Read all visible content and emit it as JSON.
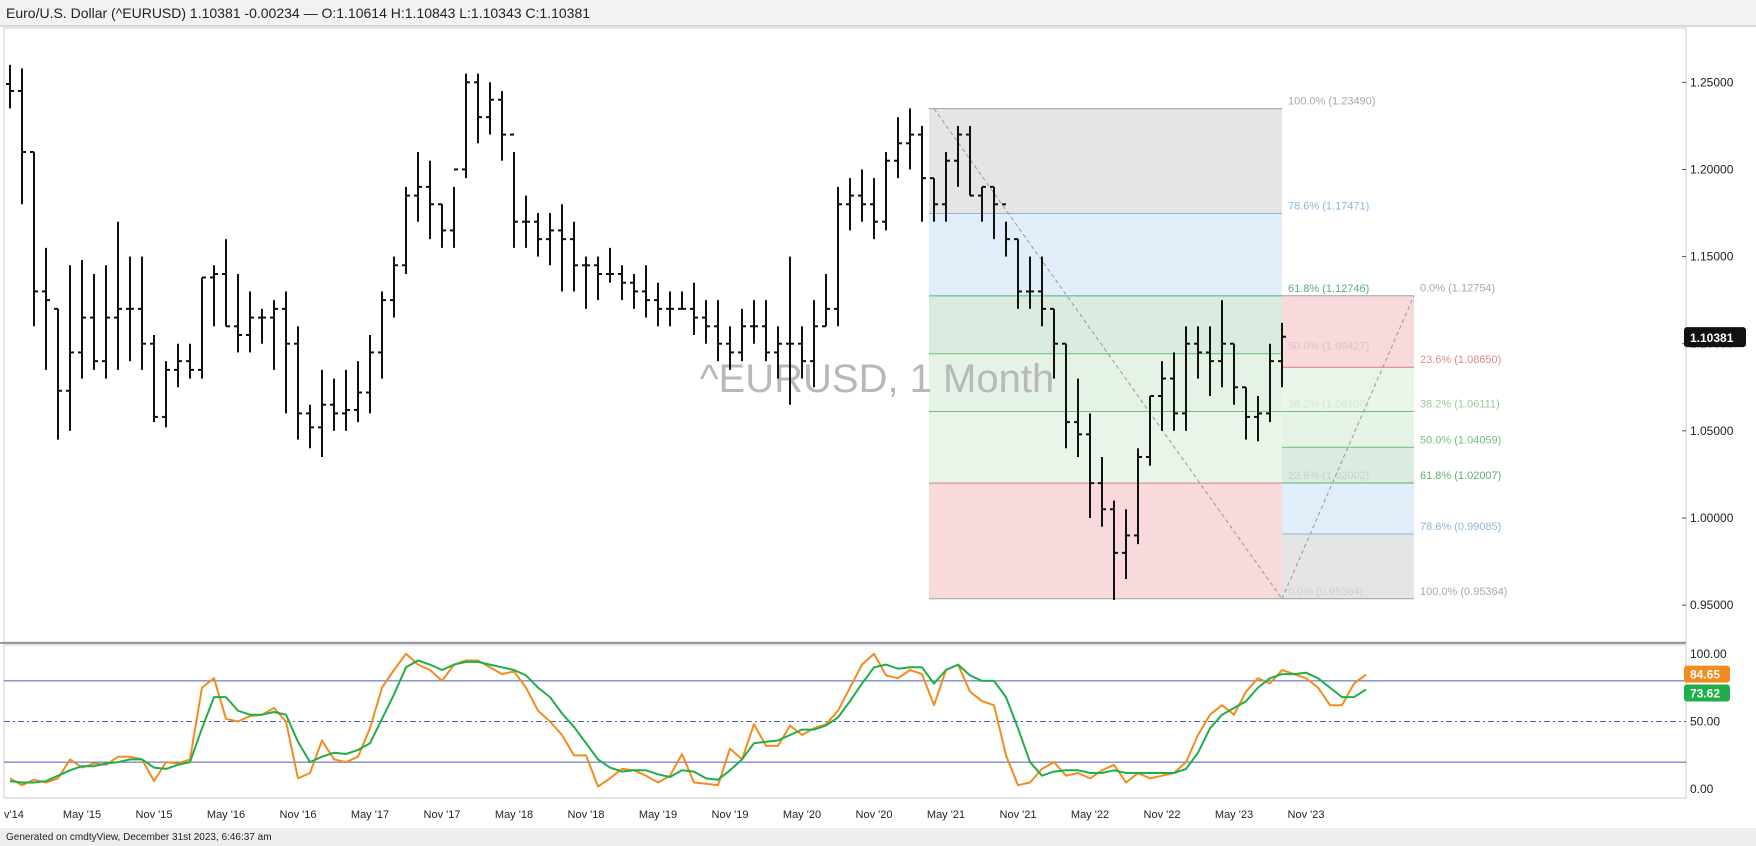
{
  "header": {
    "title": "Euro/U.S. Dollar (^EURUSD) 1.10381 -0.00234 — O:1.10614 H:1.10843 L:1.10343 C:1.10381"
  },
  "watermark": "^EURUSD, 1 Month",
  "footer": "Generated on cmdtyView, December 31st 2023, 6:46:37 am",
  "colors": {
    "bars": "#111111",
    "stoch_k": "#f28c1e",
    "stoch_d": "#1fae4a",
    "ref_line": "#4b5fb5",
    "last_price_badge": "#111111",
    "k_badge": "#f28c1e",
    "d_badge": "#1fae4a"
  },
  "chart_data": [
    {
      "type": "ohlc",
      "title": "^EURUSD, 1 Month",
      "interval": "1 Month",
      "y_axis_side": "right",
      "ylim": [
        0.93,
        1.28
      ],
      "yticks": [
        "1.25000",
        "1.20000",
        "1.15000",
        "1.10000",
        "1.05000",
        "1.00000",
        "0.95000"
      ],
      "xticks": [
        "v'14",
        "May '15",
        "Nov '15",
        "May '16",
        "Nov '16",
        "May '17",
        "Nov '17",
        "May '18",
        "Nov '18",
        "May '19",
        "Nov '19",
        "May '20",
        "Nov '20",
        "May '21",
        "Nov '21",
        "May '22",
        "Nov '22",
        "May '23",
        "Nov '23"
      ],
      "last_price": "1.10381",
      "start": "Nov 2014",
      "bars": [
        [
          1.249,
          1.26,
          1.235,
          1.245
        ],
        [
          1.245,
          1.258,
          1.18,
          1.21
        ],
        [
          1.21,
          1.21,
          1.11,
          1.13
        ],
        [
          1.13,
          1.155,
          1.085,
          1.125
        ],
        [
          1.12,
          1.12,
          1.045,
          1.073
        ],
        [
          1.073,
          1.145,
          1.05,
          1.095
        ],
        [
          1.095,
          1.148,
          1.08,
          1.115
        ],
        [
          1.115,
          1.14,
          1.085,
          1.09
        ],
        [
          1.09,
          1.145,
          1.08,
          1.115
        ],
        [
          1.115,
          1.17,
          1.085,
          1.12
        ],
        [
          1.12,
          1.15,
          1.09,
          1.12
        ],
        [
          1.12,
          1.15,
          1.085,
          1.1
        ],
        [
          1.1,
          1.105,
          1.055,
          1.058
        ],
        [
          1.058,
          1.09,
          1.052,
          1.085
        ],
        [
          1.085,
          1.1,
          1.075,
          1.09
        ],
        [
          1.09,
          1.1,
          1.08,
          1.085
        ],
        [
          1.085,
          1.138,
          1.08,
          1.138
        ],
        [
          1.138,
          1.145,
          1.11,
          1.14
        ],
        [
          1.14,
          1.16,
          1.11,
          1.11
        ],
        [
          1.11,
          1.14,
          1.095,
          1.105
        ],
        [
          1.105,
          1.13,
          1.095,
          1.115
        ],
        [
          1.115,
          1.12,
          1.1,
          1.115
        ],
        [
          1.115,
          1.125,
          1.085,
          1.12
        ],
        [
          1.12,
          1.13,
          1.06,
          1.1
        ],
        [
          1.1,
          1.11,
          1.045,
          1.06
        ],
        [
          1.06,
          1.065,
          1.04,
          1.052
        ],
        [
          1.052,
          1.085,
          1.035,
          1.065
        ],
        [
          1.065,
          1.08,
          1.05,
          1.06
        ],
        [
          1.06,
          1.085,
          1.05,
          1.062
        ],
        [
          1.062,
          1.09,
          1.055,
          1.072
        ],
        [
          1.072,
          1.105,
          1.06,
          1.095
        ],
        [
          1.095,
          1.13,
          1.08,
          1.125
        ],
        [
          1.125,
          1.15,
          1.115,
          1.145
        ],
        [
          1.145,
          1.19,
          1.14,
          1.185
        ],
        [
          1.185,
          1.21,
          1.17,
          1.19
        ],
        [
          1.19,
          1.205,
          1.16,
          1.18
        ],
        [
          1.18,
          1.18,
          1.155,
          1.165
        ],
        [
          1.165,
          1.19,
          1.155,
          1.2
        ],
        [
          1.2,
          1.255,
          1.195,
          1.25
        ],
        [
          1.25,
          1.255,
          1.215,
          1.23
        ],
        [
          1.23,
          1.25,
          1.22,
          1.24
        ],
        [
          1.24,
          1.245,
          1.205,
          1.22
        ],
        [
          1.22,
          1.21,
          1.155,
          1.17
        ],
        [
          1.17,
          1.185,
          1.155,
          1.17
        ],
        [
          1.17,
          1.175,
          1.15,
          1.16
        ],
        [
          1.16,
          1.175,
          1.145,
          1.165
        ],
        [
          1.165,
          1.18,
          1.13,
          1.16
        ],
        [
          1.16,
          1.17,
          1.13,
          1.145
        ],
        [
          1.145,
          1.15,
          1.12,
          1.145
        ],
        [
          1.145,
          1.15,
          1.125,
          1.14
        ],
        [
          1.14,
          1.155,
          1.135,
          1.14
        ],
        [
          1.14,
          1.145,
          1.125,
          1.135
        ],
        [
          1.135,
          1.14,
          1.12,
          1.13
        ],
        [
          1.13,
          1.145,
          1.115,
          1.125
        ],
        [
          1.125,
          1.135,
          1.11,
          1.12
        ],
        [
          1.12,
          1.13,
          1.11,
          1.12
        ],
        [
          1.12,
          1.13,
          1.12,
          1.12
        ],
        [
          1.12,
          1.135,
          1.105,
          1.115
        ],
        [
          1.115,
          1.125,
          1.1,
          1.11
        ],
        [
          1.11,
          1.125,
          1.09,
          1.1
        ],
        [
          1.1,
          1.11,
          1.085,
          1.095
        ],
        [
          1.095,
          1.12,
          1.09,
          1.11
        ],
        [
          1.11,
          1.125,
          1.1,
          1.11
        ],
        [
          1.11,
          1.125,
          1.09,
          1.095
        ],
        [
          1.095,
          1.11,
          1.08,
          1.1
        ],
        [
          1.1,
          1.15,
          1.065,
          1.1
        ],
        [
          1.1,
          1.11,
          1.08,
          1.09
        ],
        [
          1.09,
          1.125,
          1.075,
          1.11
        ],
        [
          1.11,
          1.14,
          1.11,
          1.12
        ],
        [
          1.12,
          1.19,
          1.11,
          1.18
        ],
        [
          1.18,
          1.195,
          1.165,
          1.185
        ],
        [
          1.185,
          1.2,
          1.17,
          1.18
        ],
        [
          1.18,
          1.195,
          1.16,
          1.17
        ],
        [
          1.17,
          1.21,
          1.165,
          1.205
        ],
        [
          1.205,
          1.23,
          1.195,
          1.215
        ],
        [
          1.215,
          1.235,
          1.2,
          1.22
        ],
        [
          1.22,
          1.225,
          1.17,
          1.195
        ],
        [
          1.195,
          1.195,
          1.17,
          1.18
        ],
        [
          1.18,
          1.21,
          1.17,
          1.205
        ],
        [
          1.205,
          1.225,
          1.19,
          1.22
        ],
        [
          1.22,
          1.225,
          1.185,
          1.185
        ],
        [
          1.185,
          1.19,
          1.17,
          1.19
        ],
        [
          1.19,
          1.19,
          1.16,
          1.18
        ],
        [
          1.18,
          1.17,
          1.15,
          1.16
        ],
        [
          1.16,
          1.16,
          1.12,
          1.13
        ],
        [
          1.13,
          1.15,
          1.12,
          1.13
        ],
        [
          1.13,
          1.15,
          1.11,
          1.12
        ],
        [
          1.12,
          1.12,
          1.08,
          1.1
        ],
        [
          1.1,
          1.1,
          1.04,
          1.055
        ],
        [
          1.055,
          1.08,
          1.035,
          1.048
        ],
        [
          1.048,
          1.06,
          1.0,
          1.02
        ],
        [
          1.02,
          1.035,
          0.995,
          1.005
        ],
        [
          1.005,
          1.01,
          0.953,
          0.98
        ],
        [
          0.98,
          1.005,
          0.965,
          0.99
        ],
        [
          0.99,
          1.04,
          0.985,
          1.035
        ],
        [
          1.035,
          1.07,
          1.03,
          1.07
        ],
        [
          1.07,
          1.09,
          1.05,
          1.08
        ],
        [
          1.08,
          1.095,
          1.05,
          1.06
        ],
        [
          1.06,
          1.11,
          1.05,
          1.1
        ],
        [
          1.1,
          1.11,
          1.08,
          1.095
        ],
        [
          1.095,
          1.11,
          1.07,
          1.09
        ],
        [
          1.09,
          1.125,
          1.075,
          1.1
        ],
        [
          1.1,
          1.1,
          1.065,
          1.075
        ],
        [
          1.075,
          1.075,
          1.045,
          1.058
        ],
        [
          1.058,
          1.07,
          1.044,
          1.06
        ],
        [
          1.06,
          1.1,
          1.055,
          1.09
        ],
        [
          1.09,
          1.112,
          1.075,
          1.104
        ]
      ],
      "fibonacci": {
        "retracement_high": [
          {
            "label": "100.0% (1.23490)",
            "value": 1.2349
          },
          {
            "label": "78.6% (1.17471)",
            "value": 1.17471
          },
          {
            "label": "61.8% (1.12746)",
            "value": 1.12746
          },
          {
            "label": "50.0% (1.09427)",
            "value": 1.09427
          },
          {
            "label": "38.2% (1.06108)",
            "value": 1.06108
          },
          {
            "label": "23.6% (1.02002)",
            "value": 1.02002
          },
          {
            "label": "0.0% (0.95364)",
            "value": 0.95364
          }
        ],
        "retracement_low": [
          {
            "label": "0.0% (1.12754)",
            "value": 1.12754
          },
          {
            "label": "23.6% (1.08650)",
            "value": 1.0865
          },
          {
            "label": "38.2% (1.06111)",
            "value": 1.06111
          },
          {
            "label": "50.0% (1.04059)",
            "value": 1.04059
          },
          {
            "label": "61.8% (1.02007)",
            "value": 1.02007
          },
          {
            "label": "78.6% (0.99085)",
            "value": 0.99085
          },
          {
            "label": "100.0% (0.95364)",
            "value": 0.95364
          }
        ]
      }
    },
    {
      "type": "line",
      "ylim": [
        -5,
        105
      ],
      "yticks": [
        "100.00",
        "50.00",
        "0.00"
      ],
      "reference_lines": [
        80,
        50,
        20
      ],
      "series": [
        {
          "values": [
            8,
            3,
            7,
            5,
            8,
            22,
            16,
            19,
            18,
            24,
            24,
            22,
            6,
            20,
            19,
            22,
            75,
            82,
            52,
            50,
            54,
            55,
            60,
            50,
            8,
            12,
            36,
            22,
            20,
            24,
            45,
            75,
            88,
            100,
            92,
            88,
            80,
            92,
            95,
            95,
            90,
            85,
            87,
            75,
            58,
            50,
            40,
            25,
            25,
            2,
            8,
            15,
            14,
            10,
            5,
            10,
            26,
            5,
            4,
            3,
            30,
            22,
            48,
            32,
            32,
            47,
            40,
            45,
            48,
            58,
            75,
            92,
            100,
            84,
            82,
            88,
            85,
            62,
            88,
            92,
            72,
            65,
            62,
            25,
            3,
            5,
            15,
            20,
            10,
            12,
            8,
            14,
            18,
            5,
            12,
            8,
            10,
            12,
            20,
            40,
            55,
            62,
            55,
            72,
            82,
            78,
            88,
            85,
            82,
            75,
            62,
            62,
            78,
            84.65
          ]
        },
        {
          "values": [
            6,
            5,
            5,
            6,
            10,
            14,
            17,
            17,
            19,
            20,
            22,
            22,
            16,
            15,
            18,
            20,
            45,
            68,
            68,
            58,
            55,
            55,
            57,
            55,
            35,
            20,
            24,
            27,
            26,
            29,
            34,
            52,
            70,
            90,
            95,
            92,
            88,
            92,
            94,
            94,
            92,
            90,
            88,
            84,
            75,
            68,
            56,
            46,
            34,
            22,
            16,
            13,
            14,
            14,
            11,
            9,
            14,
            13,
            8,
            7,
            14,
            22,
            34,
            35,
            36,
            40,
            44,
            44,
            47,
            53,
            65,
            78,
            90,
            92,
            89,
            90,
            90,
            78,
            88,
            92,
            84,
            80,
            80,
            68,
            45,
            20,
            10,
            13,
            14,
            14,
            12,
            12,
            14,
            12,
            12,
            12,
            12,
            12,
            15,
            27,
            45,
            55,
            60,
            65,
            75,
            82,
            85,
            85,
            86,
            82,
            75,
            68,
            68,
            73.62
          ]
        }
      ],
      "k_value": "84.65",
      "d_value": "73.62"
    }
  ]
}
